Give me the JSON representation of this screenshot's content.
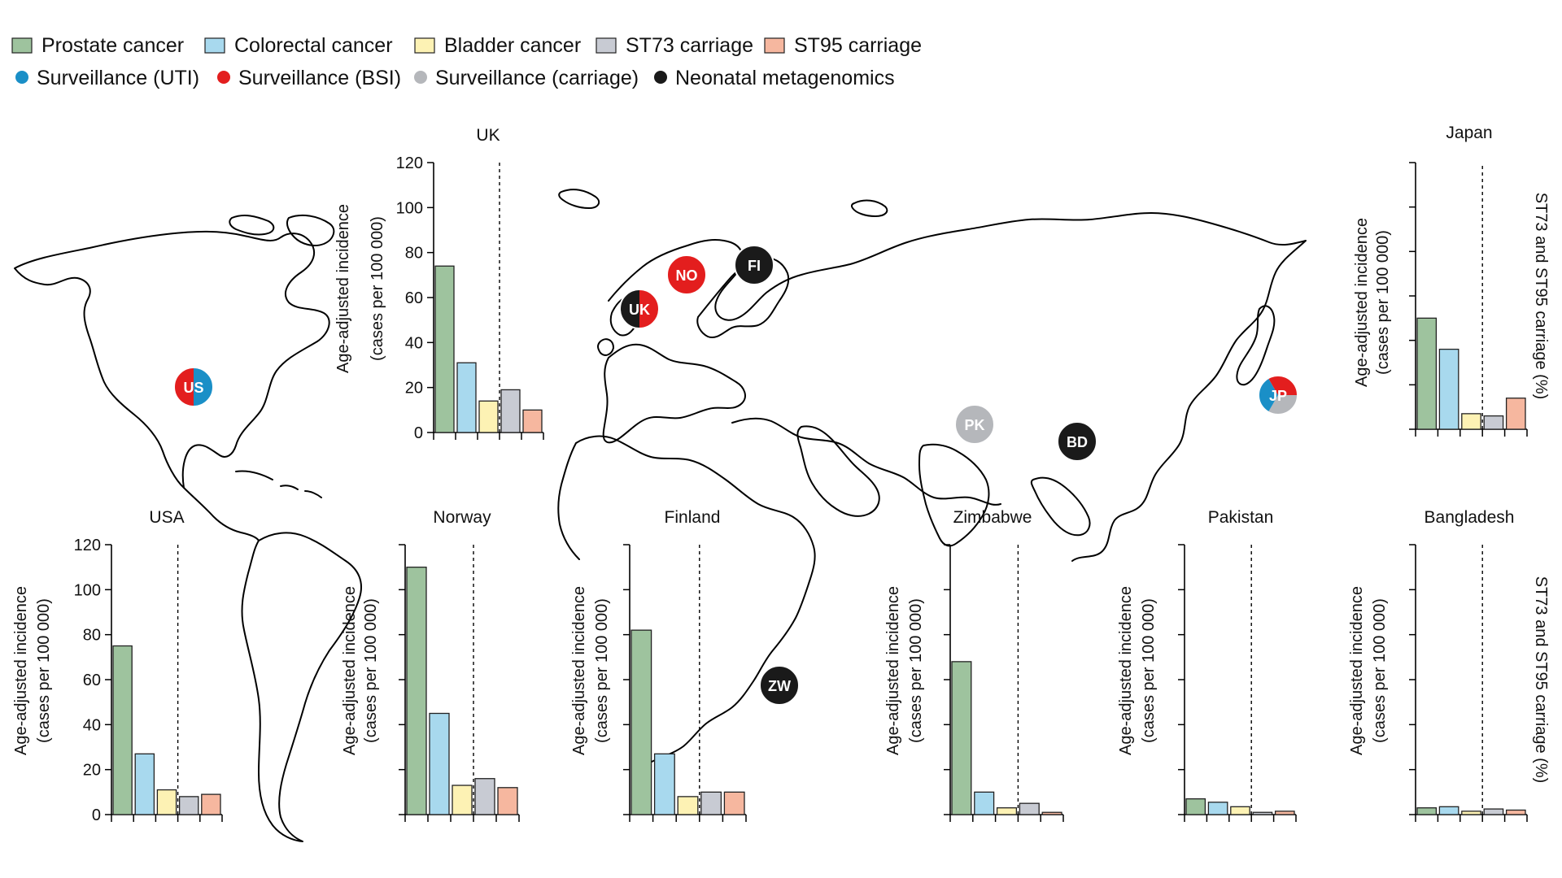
{
  "colors": {
    "prostate": "#9ec39e",
    "colorectal": "#a8d9ee",
    "bladder": "#fdf2b4",
    "st73": "#c8cbd3",
    "st95": "#f6b79f",
    "uti": "#1a8fc7",
    "bsi": "#e31e1e",
    "carriage": "#b5b7bb",
    "neonatal": "#1a1a1a"
  },
  "legend": {
    "bars": [
      {
        "label": "Prostate cancer",
        "color_key": "prostate"
      },
      {
        "label": "Colorectal cancer",
        "color_key": "colorectal"
      },
      {
        "label": "Bladder cancer",
        "color_key": "bladder"
      },
      {
        "label": "ST73 carriage",
        "color_key": "st73"
      },
      {
        "label": "ST95 carriage",
        "color_key": "st95"
      }
    ],
    "dots": [
      {
        "label": "Surveillance (UTI)",
        "color_key": "uti"
      },
      {
        "label": "Surveillance (BSI)",
        "color_key": "bsi"
      },
      {
        "label": "Surveillance (carriage)",
        "color_key": "carriage"
      },
      {
        "label": "Neonatal metagenomics",
        "color_key": "neonatal"
      }
    ]
  },
  "axis_labels": {
    "ylabel_line1": "Age-adjusted incidence",
    "ylabel_line2": "(cases per 100 000)",
    "right_ylabel": "ST73 and ST95 carriage (%)"
  },
  "map_markers": [
    {
      "code": "US",
      "segments": [
        "uti",
        "bsi"
      ]
    },
    {
      "code": "UK",
      "segments": [
        "bsi",
        "neonatal"
      ]
    },
    {
      "code": "NO",
      "segments": [
        "bsi"
      ]
    },
    {
      "code": "FI",
      "segments": [
        "neonatal"
      ]
    },
    {
      "code": "JP",
      "segments": [
        "carriage",
        "uti",
        "bsi"
      ]
    },
    {
      "code": "PK",
      "segments": [
        "carriage"
      ]
    },
    {
      "code": "BD",
      "segments": [
        "neonatal"
      ]
    },
    {
      "code": "ZW",
      "segments": [
        "neonatal"
      ]
    }
  ],
  "chart_data": [
    {
      "type": "bar",
      "title": "UK",
      "categories": [
        "Prostate cancer",
        "Colorectal cancer",
        "Bladder cancer",
        "ST73 carriage",
        "ST95 carriage"
      ],
      "values": [
        74,
        31,
        14,
        19,
        10
      ],
      "ylim": [
        0,
        120
      ],
      "yticks": [
        "0",
        "20",
        "40",
        "60",
        "80",
        "100",
        "120"
      ]
    },
    {
      "type": "bar",
      "title": "Japan",
      "categories": [
        "Prostate cancer",
        "Colorectal cancer",
        "Bladder cancer",
        "ST73 carriage",
        "ST95 carriage"
      ],
      "values": [
        50,
        36,
        7,
        6,
        14
      ],
      "ylim": [
        0,
        120
      ],
      "yticks": []
    },
    {
      "type": "bar",
      "title": "USA",
      "categories": [
        "Prostate cancer",
        "Colorectal cancer",
        "Bladder cancer",
        "ST73 carriage",
        "ST95 carriage"
      ],
      "values": [
        75,
        27,
        11,
        8,
        9
      ],
      "ylim": [
        0,
        120
      ],
      "yticks": [
        "0",
        "20",
        "40",
        "60",
        "80",
        "100",
        "120"
      ]
    },
    {
      "type": "bar",
      "title": "Norway",
      "categories": [
        "Prostate cancer",
        "Colorectal cancer",
        "Bladder cancer",
        "ST73 carriage",
        "ST95 carriage"
      ],
      "values": [
        110,
        45,
        13,
        16,
        12
      ],
      "ylim": [
        0,
        120
      ],
      "yticks": []
    },
    {
      "type": "bar",
      "title": "Finland",
      "categories": [
        "Prostate cancer",
        "Colorectal cancer",
        "Bladder cancer",
        "ST73 carriage",
        "ST95 carriage"
      ],
      "values": [
        82,
        27,
        8,
        10,
        10
      ],
      "ylim": [
        0,
        120
      ],
      "yticks": []
    },
    {
      "type": "bar",
      "title": "Zimbabwe",
      "categories": [
        "Prostate cancer",
        "Colorectal cancer",
        "Bladder cancer",
        "ST73 carriage",
        "ST95 carriage"
      ],
      "values": [
        68,
        10,
        3,
        5,
        1
      ],
      "ylim": [
        0,
        120
      ],
      "yticks": []
    },
    {
      "type": "bar",
      "title": "Pakistan",
      "categories": [
        "Prostate cancer",
        "Colorectal cancer",
        "Bladder cancer",
        "ST73 carriage",
        "ST95 carriage"
      ],
      "values": [
        7,
        5.5,
        3.5,
        1,
        1.5
      ],
      "ylim": [
        0,
        120
      ],
      "yticks": []
    },
    {
      "type": "bar",
      "title": "Bangladesh",
      "categories": [
        "Prostate cancer",
        "Colorectal cancer",
        "Bladder cancer",
        "ST73 carriage",
        "ST95 carriage"
      ],
      "values": [
        3,
        3.5,
        1.5,
        2.5,
        2
      ],
      "ylim": [
        0,
        120
      ],
      "yticks": []
    }
  ]
}
